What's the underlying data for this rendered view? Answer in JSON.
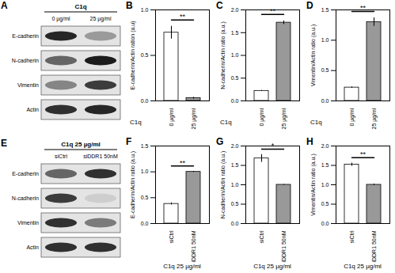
{
  "chart_data": [
    {
      "type": "bar",
      "title": "B",
      "ylabel": "E-cadherin/Actin ration (a.u)",
      "xlabel": "C1q",
      "categories": [
        "0 µg/ml",
        "25 µg/ml"
      ],
      "values": [
        0.75,
        0.03
      ],
      "errors": [
        0.07,
        0.01
      ],
      "colors": [
        "#ffffff",
        "#999999"
      ],
      "ylim": [
        0,
        1
      ],
      "yticks": [
        {
          "value": 0,
          "label": "0.0"
        },
        {
          "value": 0.5,
          "label": "0.5"
        },
        {
          "value": 1,
          "label": "1.0"
        }
      ],
      "annotations": [
        "**"
      ]
    },
    {
      "type": "bar",
      "title": "C",
      "ylabel": "N-cadherin/Actin ratio (a.u.)",
      "xlabel": "C1q",
      "categories": [
        "0 µg/ml",
        "25 µg/ml"
      ],
      "values": [
        0.22,
        1.72
      ],
      "errors": [
        0.01,
        0.04
      ],
      "colors": [
        "#ffffff",
        "#999999"
      ],
      "ylim": [
        0,
        2
      ],
      "yticks": [
        {
          "value": 0,
          "label": "0.0"
        },
        {
          "value": 0.5,
          "label": "0.5"
        },
        {
          "value": 1,
          "label": "1.0"
        },
        {
          "value": 1.5,
          "label": "1.5"
        },
        {
          "value": 2,
          "label": "2.0"
        }
      ],
      "annotations": [
        "**"
      ]
    },
    {
      "type": "bar",
      "title": "D",
      "ylabel": "Vimentin/Actin ratio (a.u.)",
      "xlabel": "C1q",
      "categories": [
        "0 µg/ml",
        "25 µg/ml"
      ],
      "values": [
        0.22,
        1.3
      ],
      "errors": [
        0.01,
        0.07
      ],
      "colors": [
        "#ffffff",
        "#999999"
      ],
      "ylim": [
        0,
        1.5
      ],
      "yticks": [
        {
          "value": 0,
          "label": "0.0"
        },
        {
          "value": 0.5,
          "label": "0.5"
        },
        {
          "value": 1,
          "label": "1.0"
        },
        {
          "value": 1.5,
          "label": "1.5"
        }
      ],
      "annotations": [
        "**"
      ]
    },
    {
      "type": "bar",
      "title": "F",
      "ylabel": "E-cadherin/Actin ratio (a.u.)",
      "xlabel": "C1q 25 µg/ml",
      "categories": [
        "siCtrl",
        "siDDR1 50nM"
      ],
      "values": [
        0.38,
        1.0
      ],
      "errors": [
        0.02,
        0.01
      ],
      "colors": [
        "#ffffff",
        "#999999"
      ],
      "ylim": [
        0,
        1.5
      ],
      "yticks": [
        {
          "value": 0,
          "label": "0.0"
        },
        {
          "value": 0.5,
          "label": "0.5"
        },
        {
          "value": 1,
          "label": "1.0"
        },
        {
          "value": 1.5,
          "label": "1.5"
        }
      ],
      "annotations": [
        "**"
      ]
    },
    {
      "type": "bar",
      "title": "G",
      "ylabel": "N-cadherin/Actin ratio (a.u.)",
      "xlabel": "C1q 25 µg/ml",
      "categories": [
        "siCtrl",
        "siDDR1 50nM"
      ],
      "values": [
        1.68,
        1.0
      ],
      "errors": [
        0.1,
        0.01
      ],
      "colors": [
        "#ffffff",
        "#999999"
      ],
      "ylim": [
        0,
        2
      ],
      "yticks": [
        {
          "value": 0,
          "label": "0.0"
        },
        {
          "value": 0.5,
          "label": "0.5"
        },
        {
          "value": 1,
          "label": "1.0"
        },
        {
          "value": 1.5,
          "label": "1.5"
        },
        {
          "value": 2,
          "label": "2.0"
        }
      ],
      "annotations": [
        "*"
      ]
    },
    {
      "type": "bar",
      "title": "H",
      "ylabel": "Vimentin/Actin ratio (a.u.)",
      "xlabel": "C1q 25 µg/ml",
      "categories": [
        "siCtrl",
        "siDDR1 50nM"
      ],
      "values": [
        1.52,
        1.0
      ],
      "errors": [
        0.04,
        0.02
      ],
      "colors": [
        "#ffffff",
        "#999999"
      ],
      "ylim": [
        0,
        2
      ],
      "yticks": [
        {
          "value": 0,
          "label": "0.0"
        },
        {
          "value": 0.5,
          "label": "0.5"
        },
        {
          "value": 1,
          "label": "1.0"
        },
        {
          "value": 1.5,
          "label": "1.5"
        },
        {
          "value": 2,
          "label": "2.0"
        }
      ],
      "annotations": [
        "**"
      ]
    }
  ],
  "blots": [
    {
      "title": "A",
      "header": "C1q",
      "lanes": [
        "0 µg/ml",
        "25 µg/ml"
      ],
      "rows": [
        "E-cadherin",
        "N-cadherin",
        "Vimentin",
        "Actin"
      ],
      "band_intensity": [
        [
          0.9,
          0.35
        ],
        [
          0.6,
          0.95
        ],
        [
          0.45,
          0.8
        ],
        [
          0.85,
          0.9
        ]
      ]
    },
    {
      "title": "E",
      "header": "C1q 25 µg/ml",
      "lanes": [
        "siCtrl",
        "siDDR1 50nM"
      ],
      "rows": [
        "E-cadherin",
        "N-cadherin",
        "Vimentin",
        "Actin"
      ],
      "band_intensity": [
        [
          0.6,
          0.85
        ],
        [
          0.8,
          0.1
        ],
        [
          0.85,
          0.5
        ],
        [
          0.85,
          0.85
        ]
      ]
    }
  ]
}
